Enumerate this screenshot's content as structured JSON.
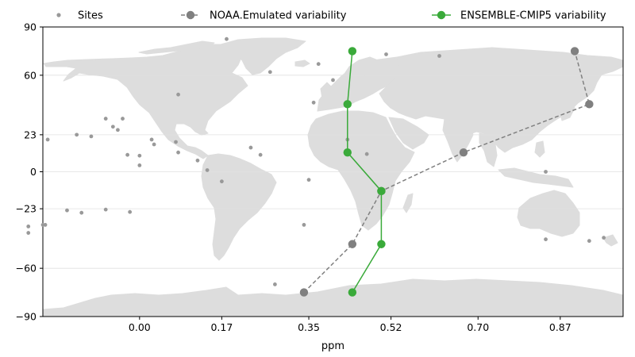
{
  "chart_data": {
    "type": "line",
    "xlabel": "ppm",
    "ylabel": "",
    "xlim": [
      -0.2,
      1.0
    ],
    "ylim": [
      -90,
      90
    ],
    "x_ticks": [
      0.0,
      0.17,
      0.35,
      0.52,
      0.7,
      0.87
    ],
    "x_tick_labels": [
      "0.00",
      "0.17",
      "0.35",
      "0.52",
      "0.70",
      "0.87"
    ],
    "y_ticks": [
      90,
      60,
      23,
      0,
      -23,
      -60,
      -90
    ],
    "y_tick_labels": [
      "90",
      "60",
      "23",
      "0",
      "−23",
      "−60",
      "−90"
    ],
    "grid": "horizontal",
    "legend_position": "top",
    "background": "world map",
    "series": [
      {
        "name": "Sites",
        "kind": "scatter",
        "color": "#999999",
        "x": [
          -0.07,
          -0.15,
          -0.23,
          -0.12,
          -0.02,
          -0.025,
          0.03,
          0.025,
          0.0,
          -0.1,
          -0.13,
          -0.055,
          -0.045,
          -0.07,
          -0.035,
          -0.0,
          -0.23,
          -0.2,
          -0.195,
          -0.19,
          0.08,
          0.14,
          0.36,
          0.43,
          0.37,
          0.4,
          0.51,
          0.12,
          0.08,
          0.075,
          0.23,
          0.25,
          0.35,
          0.28,
          0.47,
          0.17,
          0.62,
          0.27,
          0.84,
          0.84,
          0.93,
          0.93,
          0.96,
          0.34,
          0.18
        ],
        "y": [
          -23.5,
          -24,
          -34,
          -25.5,
          -25,
          10.5,
          17,
          20,
          10,
          22,
          23,
          28,
          26,
          33,
          33,
          4,
          -38,
          -33,
          -33,
          20,
          48,
          1,
          43,
          20,
          67,
          57,
          73,
          7,
          12,
          18.5,
          15,
          10.5,
          -5,
          -70,
          11,
          -6,
          72,
          62,
          -42,
          0,
          -43,
          43,
          -41,
          -33,
          82.5
        ]
      },
      {
        "name": "NOAA.Emulated variability",
        "kind": "line",
        "color": "#808080",
        "dash": true,
        "x": [
          0.34,
          0.44,
          0.5,
          0.67,
          0.93,
          0.9
        ],
        "y": [
          -75,
          -45,
          -12,
          12,
          42,
          75
        ]
      },
      {
        "name": "ENSEMBLE-CMIP5 variability",
        "kind": "line",
        "color": "#3aaa3a",
        "dash": false,
        "x": [
          0.44,
          0.5,
          0.5,
          0.43,
          0.43,
          0.44
        ],
        "y": [
          -75,
          -45,
          -12,
          12,
          42,
          75
        ]
      }
    ]
  }
}
